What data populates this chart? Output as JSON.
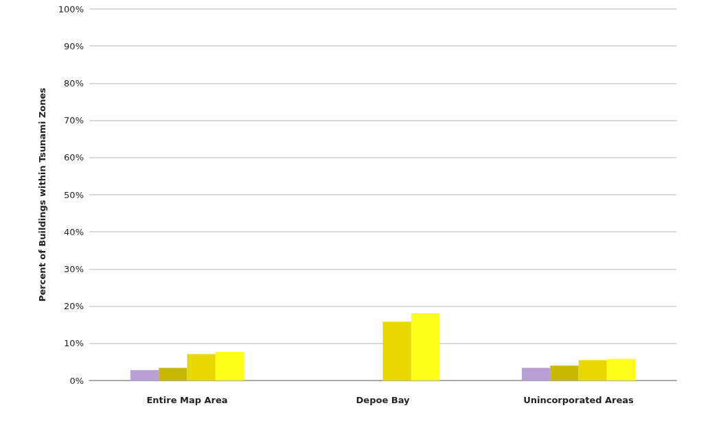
{
  "chart_data": {
    "type": "bar",
    "ylabel": "Percent of Buildings within Tsunami Zones",
    "categories": [
      "Entire Map Area",
      "Depoe Bay",
      "Unincorporated Areas"
    ],
    "series": [
      {
        "color": "#b9a0d4",
        "values": [
          2.8,
          0,
          3.4
        ]
      },
      {
        "color": "#c9b800",
        "values": [
          3.4,
          0,
          4.0
        ]
      },
      {
        "color": "#e8d800",
        "values": [
          7.1,
          15.8,
          5.5
        ]
      },
      {
        "color": "#ffff1a",
        "values": [
          7.7,
          18.1,
          5.8
        ]
      }
    ],
    "ylim": [
      0,
      100
    ],
    "yticks": [
      {
        "value": 0,
        "label": "0%"
      },
      {
        "value": 10,
        "label": "10%"
      },
      {
        "value": 20,
        "label": "20%"
      },
      {
        "value": 30,
        "label": "30%"
      },
      {
        "value": 40,
        "label": "40%"
      },
      {
        "value": 50,
        "label": "50%"
      },
      {
        "value": 60,
        "label": "60%"
      },
      {
        "value": 70,
        "label": "70%"
      },
      {
        "value": 80,
        "label": "80%"
      },
      {
        "value": 90,
        "label": "90%"
      },
      {
        "value": 100,
        "label": "100%"
      }
    ],
    "grid": "y"
  }
}
